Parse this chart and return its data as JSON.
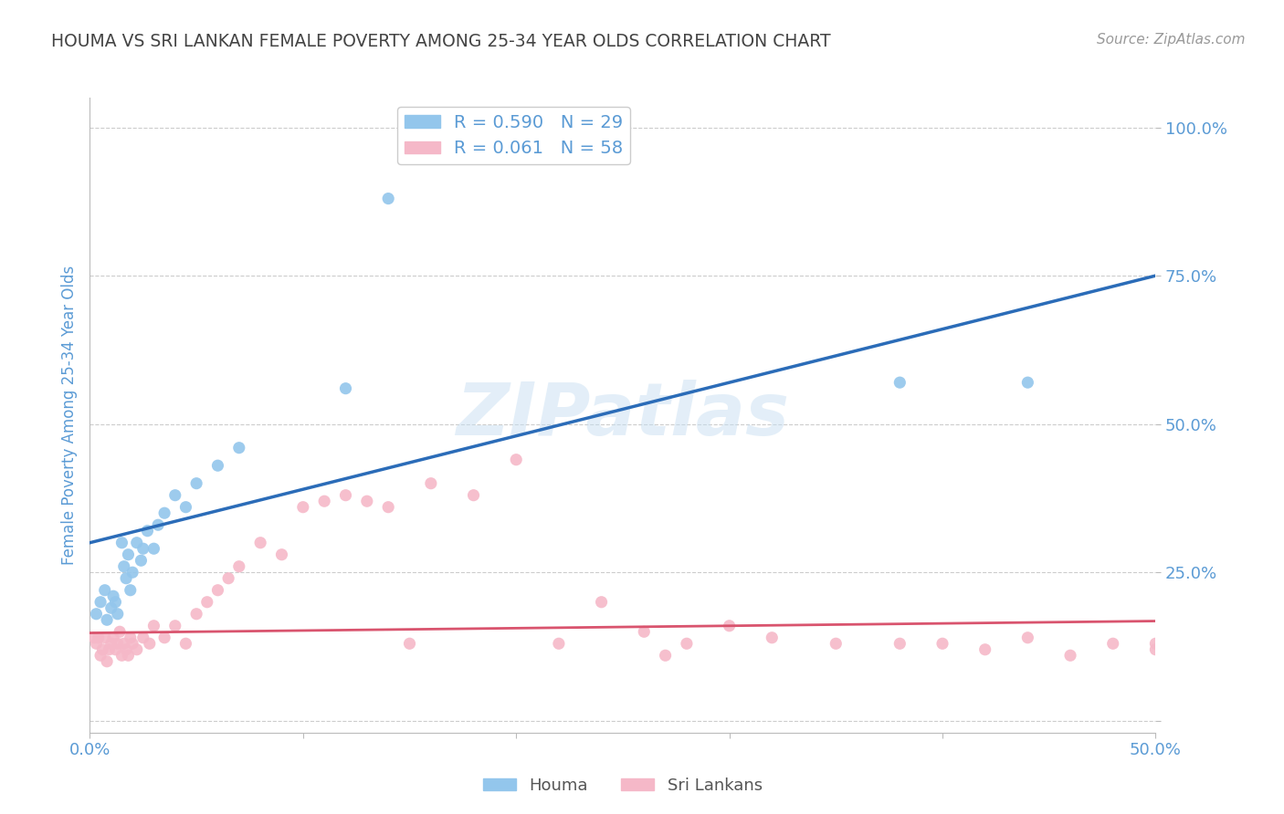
{
  "title": "HOUMA VS SRI LANKAN FEMALE POVERTY AMONG 25-34 YEAR OLDS CORRELATION CHART",
  "source": "Source: ZipAtlas.com",
  "ylabel": "Female Poverty Among 25-34 Year Olds",
  "xlim": [
    0.0,
    0.5
  ],
  "ylim": [
    -0.02,
    1.05
  ],
  "yticks": [
    0.0,
    0.25,
    0.5,
    0.75,
    1.0
  ],
  "ytick_labels": [
    "",
    "25.0%",
    "50.0%",
    "75.0%",
    "100.0%"
  ],
  "xticks": [
    0.0,
    0.1,
    0.2,
    0.3,
    0.4,
    0.5
  ],
  "xtick_labels": [
    "0.0%",
    "",
    "",
    "",
    "",
    "50.0%"
  ],
  "houma_R": 0.59,
  "houma_N": 29,
  "sri_R": 0.061,
  "sri_N": 58,
  "houma_color": "#93C6EC",
  "sri_color": "#F5B8C8",
  "houma_line_color": "#2B6CB8",
  "sri_line_color": "#D9546E",
  "background_color": "#FFFFFF",
  "grid_color": "#CCCCCC",
  "title_color": "#444444",
  "axis_label_color": "#5B9BD5",
  "watermark": "ZIPatlas",
  "houma_scatter_x": [
    0.003,
    0.005,
    0.007,
    0.008,
    0.01,
    0.011,
    0.012,
    0.013,
    0.015,
    0.016,
    0.017,
    0.018,
    0.019,
    0.02,
    0.022,
    0.024,
    0.025,
    0.027,
    0.03,
    0.032,
    0.035,
    0.04,
    0.045,
    0.05,
    0.06,
    0.07,
    0.12,
    0.38,
    0.44
  ],
  "houma_scatter_y": [
    0.18,
    0.2,
    0.22,
    0.17,
    0.19,
    0.21,
    0.2,
    0.18,
    0.3,
    0.26,
    0.24,
    0.28,
    0.22,
    0.25,
    0.3,
    0.27,
    0.29,
    0.32,
    0.29,
    0.33,
    0.35,
    0.38,
    0.36,
    0.4,
    0.43,
    0.46,
    0.56,
    0.57,
    0.57
  ],
  "houma_outlier_x": [
    0.14
  ],
  "houma_outlier_y": [
    0.88
  ],
  "sri_scatter_x": [
    0.002,
    0.003,
    0.004,
    0.005,
    0.006,
    0.007,
    0.008,
    0.009,
    0.01,
    0.011,
    0.012,
    0.013,
    0.014,
    0.015,
    0.016,
    0.017,
    0.018,
    0.019,
    0.02,
    0.022,
    0.025,
    0.028,
    0.03,
    0.035,
    0.04,
    0.045,
    0.05,
    0.055,
    0.06,
    0.065,
    0.07,
    0.08,
    0.09,
    0.1,
    0.11,
    0.12,
    0.13,
    0.14,
    0.15,
    0.16,
    0.18,
    0.2,
    0.22,
    0.24,
    0.26,
    0.27,
    0.28,
    0.3,
    0.32,
    0.35,
    0.38,
    0.4,
    0.42,
    0.44,
    0.46,
    0.48,
    0.5,
    0.5
  ],
  "sri_scatter_y": [
    0.14,
    0.13,
    0.14,
    0.11,
    0.12,
    0.14,
    0.1,
    0.12,
    0.13,
    0.14,
    0.12,
    0.13,
    0.15,
    0.11,
    0.13,
    0.12,
    0.11,
    0.14,
    0.13,
    0.12,
    0.14,
    0.13,
    0.16,
    0.14,
    0.16,
    0.13,
    0.18,
    0.2,
    0.22,
    0.24,
    0.26,
    0.3,
    0.28,
    0.36,
    0.37,
    0.38,
    0.37,
    0.36,
    0.13,
    0.4,
    0.38,
    0.44,
    0.13,
    0.2,
    0.15,
    0.11,
    0.13,
    0.16,
    0.14,
    0.13,
    0.13,
    0.13,
    0.12,
    0.14,
    0.11,
    0.13,
    0.13,
    0.12
  ],
  "houma_line_x": [
    0.0,
    0.5
  ],
  "houma_line_y": [
    0.3,
    0.75
  ],
  "sri_line_x": [
    0.0,
    0.5
  ],
  "sri_line_y": [
    0.148,
    0.168
  ]
}
